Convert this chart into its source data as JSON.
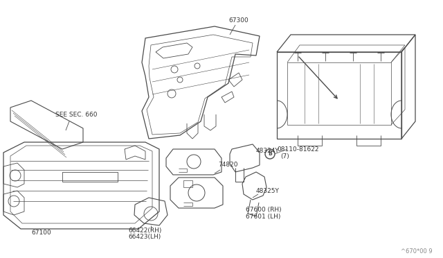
{
  "background_color": "#ffffff",
  "line_color": "#4a4a4a",
  "text_color": "#333333",
  "fig_width": 6.4,
  "fig_height": 3.72,
  "dpi": 100,
  "footer_text": "^670*00 9",
  "label_67300": "67300",
  "label_67100": "67100",
  "label_see_sec": "SEE SEC. 660",
  "label_74820": "74820",
  "label_66422": "66422(RH)",
  "label_66423": "66423(LH)",
  "label_48324y": "48324Y",
  "label_48325y": "48325Y",
  "label_bolt": "B",
  "label_bolt_num": "08110-81622",
  "label_bolt_qty": "(7)",
  "label_67600": "67600 (RH)",
  "label_67601": "67601 (LH)"
}
